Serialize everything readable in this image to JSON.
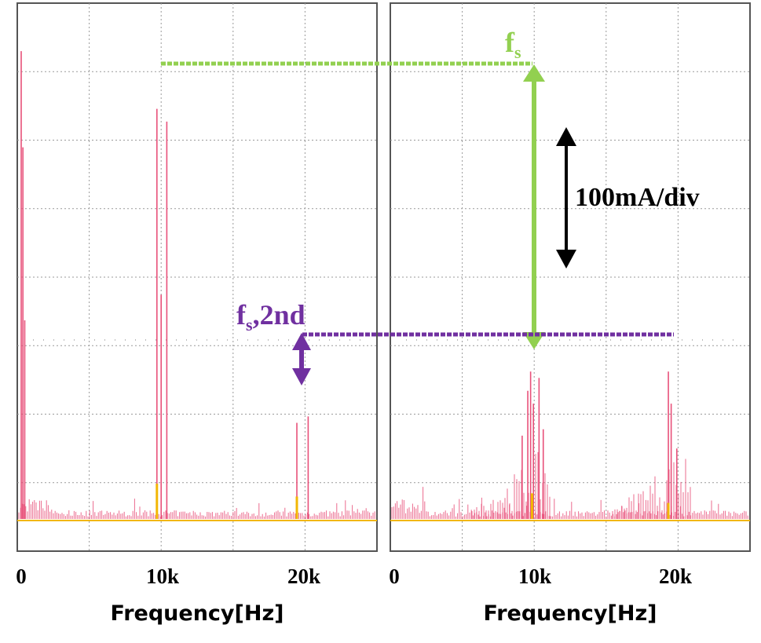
{
  "chart_data": [
    {
      "type": "line",
      "panel": "left",
      "xlabel": "Frequency[Hz]",
      "x_tick_labels": [
        "0",
        "10k",
        "20k"
      ],
      "x_ticks": [
        0,
        10000,
        20000
      ],
      "xlim": [
        -500,
        24500
      ],
      "ylim": [
        0,
        8
      ],
      "grid": true,
      "series": [
        {
          "color": "#e8517a",
          "peaks": [
            {
              "x": 0,
              "y": 7.3
            },
            {
              "x": 120,
              "y": 5.8
            },
            {
              "x": 250,
              "y": 3.1
            },
            {
              "x": 9600,
              "y": 6.4
            },
            {
              "x": 9900,
              "y": 3.5
            },
            {
              "x": 10300,
              "y": 6.2
            },
            {
              "x": 19500,
              "y": 1.5
            },
            {
              "x": 20300,
              "y": 1.6
            }
          ]
        },
        {
          "color": "#f2b705",
          "baseline": 0.0,
          "peaks": [
            {
              "x": 9600,
              "y": 0.55
            },
            {
              "x": 19500,
              "y": 0.35
            }
          ]
        }
      ]
    },
    {
      "type": "line",
      "panel": "right",
      "xlabel": "Frequency[Hz]",
      "x_tick_labels": [
        "0",
        "10k",
        "20k"
      ],
      "x_ticks": [
        0,
        10000,
        20000
      ],
      "xlim": [
        -500,
        24500
      ],
      "ylim": [
        0,
        8
      ],
      "grid": true,
      "series": [
        {
          "color": "#e8517a",
          "peaks": [
            {
              "x": 9100,
              "y": 1.3
            },
            {
              "x": 9500,
              "y": 2.0
            },
            {
              "x": 9700,
              "y": 2.3
            },
            {
              "x": 9900,
              "y": 1.8
            },
            {
              "x": 10300,
              "y": 2.2
            },
            {
              "x": 10600,
              "y": 1.4
            },
            {
              "x": 19500,
              "y": 2.3
            },
            {
              "x": 19700,
              "y": 1.8
            },
            {
              "x": 20100,
              "y": 1.1
            }
          ]
        },
        {
          "color": "#f2b705",
          "baseline": 0.0,
          "peaks": [
            {
              "x": 9800,
              "y": 0.4
            },
            {
              "x": 19500,
              "y": 0.25
            }
          ]
        }
      ]
    }
  ],
  "annotations": {
    "fs_label": "f",
    "fs_sub": "s",
    "fs2_label": "f",
    "fs2_sub": "s",
    "fs2_suffix": ",2nd",
    "scale_label": "100mA/div",
    "colors": {
      "green": "#92d050",
      "purple": "#7030a0",
      "black": "#000000"
    }
  }
}
